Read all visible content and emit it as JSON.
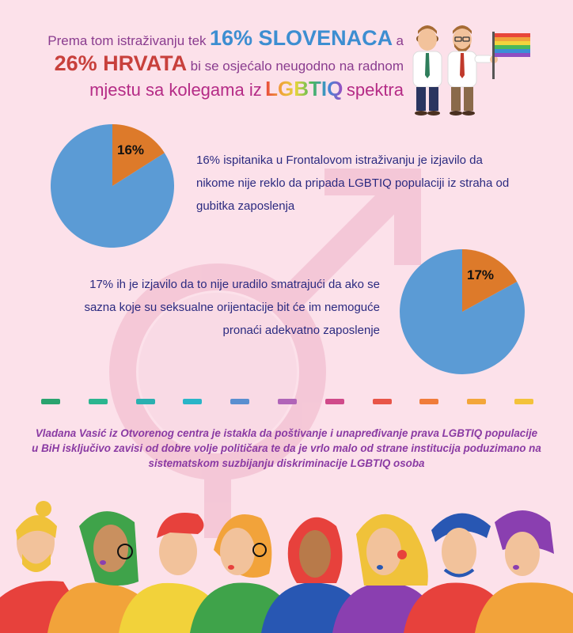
{
  "headline": {
    "line1_prefix": "Prema tom istraživanju tek",
    "line1_highlight": "16% SLOVENACA",
    "line1_suffix": "a",
    "line2_highlight": "26% HRVATA",
    "line2_suffix": "bi se osjećalo neugodno na radnom",
    "line3_prefix": "mjestu sa kolegama iz",
    "line3_highlight": "LGBTIQ",
    "line3_suffix": "spektra"
  },
  "stat1": {
    "percent": 16,
    "label": "16%",
    "text": "16% ispitanika u Frontalovom istraživanju je izjavilo da nikome nije reklo da pripada LGBTIQ populaciji iz straha od gubitka zaposlenja"
  },
  "stat2": {
    "percent": 17,
    "label": "17%",
    "text": "17% ih je izjavilo da to nije uradilo smatrajući da ako se sazna koje su seksualne orijentacije bit će im nemoguće pronaći adekvatno zaposlenje"
  },
  "quote": "Vladana Vasić iz Otvorenog centra je istakla da poštivanje i unapređivanje prava LGBTIQ populacije u BiH isključivo zavisi od dobre volje političara te da je vrlo malo od strane institucija poduzimano na sistematskom suzbijanju diskriminacije LGBTIQ osoba",
  "colors": {
    "pie_main": "#5b9bd5",
    "pie_slice": "#dd7a2a",
    "dashes": [
      "#2aa36f",
      "#2bb58f",
      "#2ab0b0",
      "#2ab5c8",
      "#5a8fd0",
      "#b065b8",
      "#d04a8a",
      "#e85548",
      "#f07c3a",
      "#f3a63a",
      "#f3c23a"
    ]
  },
  "icons": {
    "background": "mars-venus-symbol",
    "top_right": "two-men-with-rainbow-flag",
    "bottom": "diverse-people-illustration"
  }
}
